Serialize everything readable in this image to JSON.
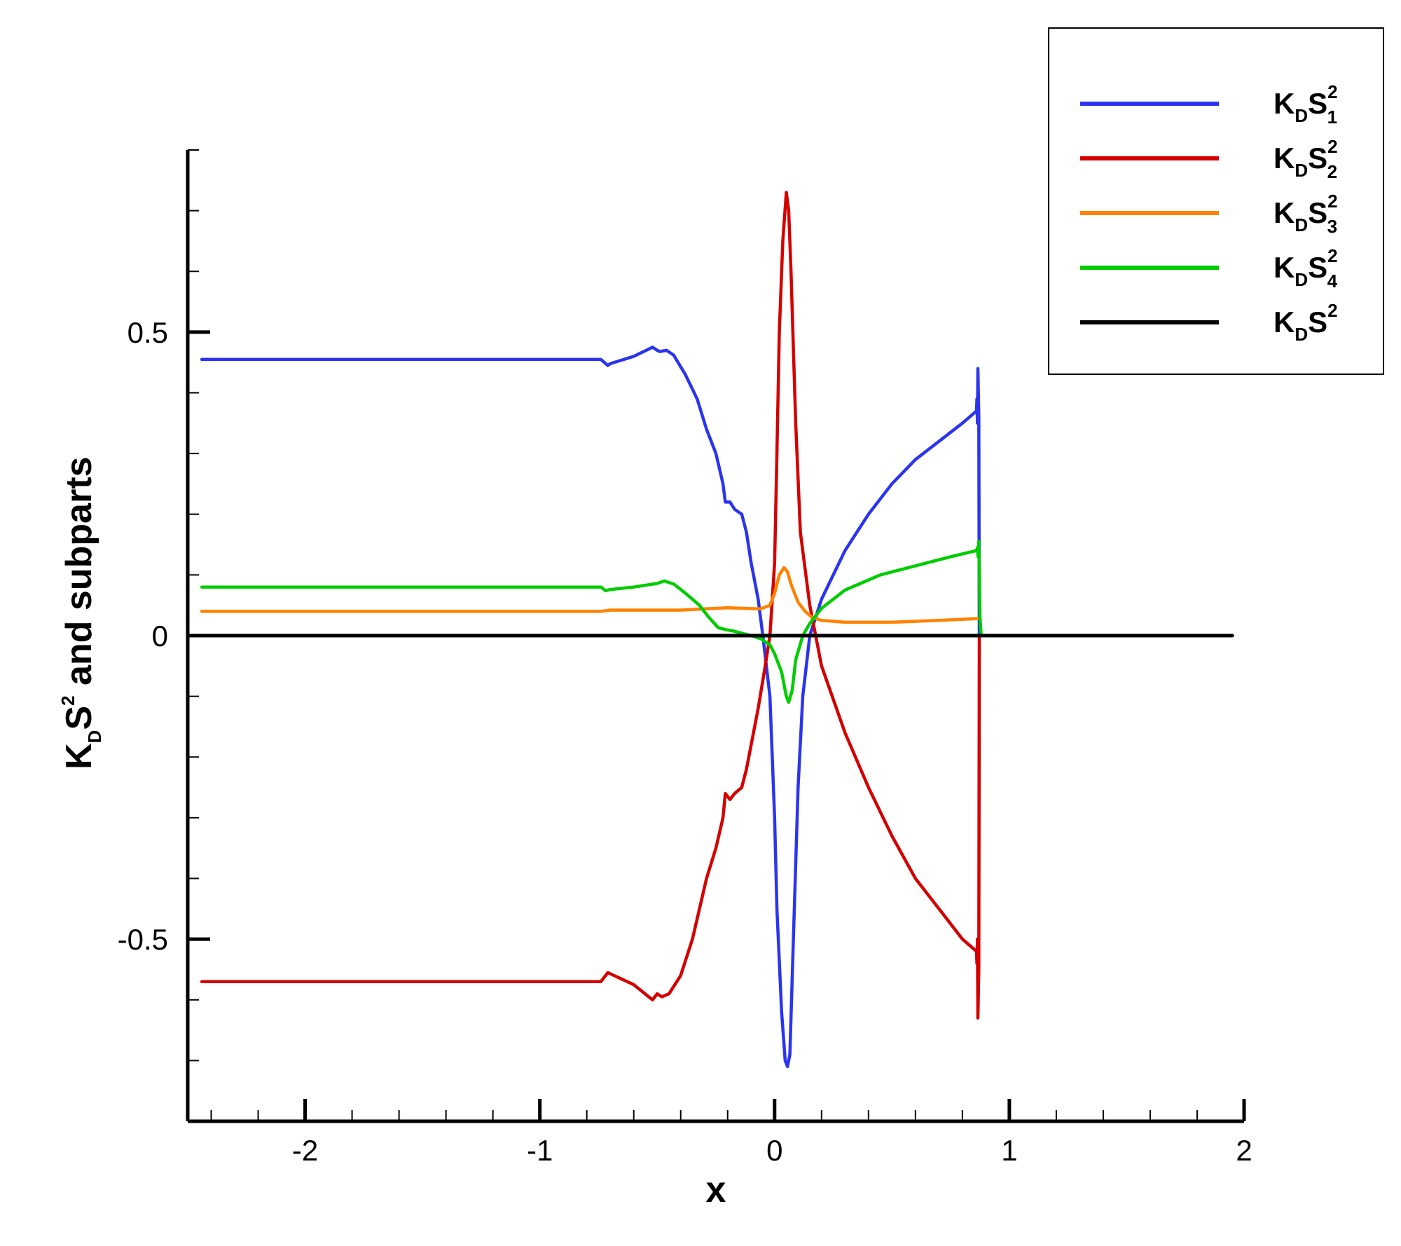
{
  "chart_data": {
    "type": "line",
    "xlabel": "x",
    "ylabel": {
      "main": "K",
      "sub": "D",
      "mid": "S",
      "sup": "2",
      "tail": " and subparts"
    },
    "xlim": [
      -2.5,
      2.0
    ],
    "ylim": [
      -0.8,
      0.8
    ],
    "x_ticks": [
      {
        "value": -2,
        "label": "-2"
      },
      {
        "value": -1,
        "label": "-1"
      },
      {
        "value": 0,
        "label": "0"
      },
      {
        "value": 1,
        "label": "1"
      },
      {
        "value": 2,
        "label": "2"
      }
    ],
    "x_minor_step": 0.2,
    "y_ticks": [
      {
        "value": 0.5,
        "label": "0.5"
      },
      {
        "value": 0,
        "label": "0"
      },
      {
        "value": -0.5,
        "label": "-0.5"
      }
    ],
    "y_minor_step": 0.1,
    "grid": false,
    "legend_position": "top-right",
    "series": [
      {
        "key": "s1",
        "legend": {
          "main": "K",
          "sub": "D",
          "mid": "S",
          "sup": "2",
          "idx": "1"
        },
        "color": "#2b35ee",
        "x": [
          -2.44,
          -0.74,
          -0.71,
          -0.7,
          -0.6,
          -0.52,
          -0.5,
          -0.49,
          -0.46,
          -0.43,
          -0.38,
          -0.33,
          -0.29,
          -0.25,
          -0.22,
          -0.21,
          -0.19,
          -0.17,
          -0.14,
          -0.12,
          -0.1,
          -0.07,
          -0.05,
          -0.02,
          0.0,
          0.01,
          0.03,
          0.045,
          0.055,
          0.065,
          0.08,
          0.1,
          0.12,
          0.15,
          0.2,
          0.3,
          0.4,
          0.5,
          0.6,
          0.7,
          0.8,
          0.86,
          0.862,
          0.864,
          0.866,
          0.87,
          0.872,
          0.875
        ],
        "y": [
          0.455,
          0.455,
          0.445,
          0.448,
          0.46,
          0.475,
          0.47,
          0.468,
          0.47,
          0.462,
          0.43,
          0.39,
          0.34,
          0.3,
          0.25,
          0.22,
          0.22,
          0.208,
          0.2,
          0.17,
          0.12,
          0.06,
          0.0,
          -0.1,
          -0.3,
          -0.45,
          -0.62,
          -0.7,
          -0.71,
          -0.69,
          -0.5,
          -0.25,
          -0.1,
          0.0,
          0.06,
          0.14,
          0.2,
          0.25,
          0.29,
          0.32,
          0.35,
          0.37,
          0.39,
          0.35,
          0.44,
          0.36,
          0.0,
          0.0
        ]
      },
      {
        "key": "s2",
        "legend": {
          "main": "K",
          "sub": "D",
          "mid": "S",
          "sup": "2",
          "idx": "2"
        },
        "color": "#d40000",
        "x": [
          -2.44,
          -0.74,
          -0.71,
          -0.7,
          -0.6,
          -0.52,
          -0.5,
          -0.48,
          -0.45,
          -0.4,
          -0.35,
          -0.29,
          -0.25,
          -0.22,
          -0.21,
          -0.19,
          -0.17,
          -0.14,
          -0.12,
          -0.1,
          -0.07,
          -0.04,
          -0.02,
          0.0,
          0.01,
          0.02,
          0.035,
          0.05,
          0.06,
          0.07,
          0.09,
          0.11,
          0.15,
          0.2,
          0.3,
          0.4,
          0.5,
          0.6,
          0.7,
          0.8,
          0.86,
          0.862,
          0.864,
          0.866,
          0.87,
          0.872,
          0.875
        ],
        "y": [
          -0.57,
          -0.57,
          -0.555,
          -0.557,
          -0.575,
          -0.6,
          -0.59,
          -0.595,
          -0.59,
          -0.56,
          -0.5,
          -0.4,
          -0.35,
          -0.3,
          -0.26,
          -0.27,
          -0.26,
          -0.25,
          -0.22,
          -0.18,
          -0.12,
          -0.05,
          0.0,
          0.12,
          0.3,
          0.5,
          0.65,
          0.73,
          0.7,
          0.6,
          0.35,
          0.17,
          0.05,
          -0.05,
          -0.16,
          -0.25,
          -0.33,
          -0.4,
          -0.45,
          -0.5,
          -0.52,
          -0.54,
          -0.5,
          -0.63,
          -0.55,
          0.0,
          0.0
        ]
      },
      {
        "key": "s3",
        "legend": {
          "main": "K",
          "sub": "D",
          "mid": "S",
          "sup": "2",
          "idx": "3"
        },
        "color": "#ff8200",
        "x": [
          -2.44,
          -0.74,
          -0.7,
          -0.4,
          -0.2,
          -0.06,
          -0.02,
          0.0,
          0.02,
          0.04,
          0.055,
          0.07,
          0.1,
          0.13,
          0.16,
          0.2,
          0.3,
          0.5,
          0.7,
          0.86,
          0.872
        ],
        "y": [
          0.04,
          0.04,
          0.042,
          0.042,
          0.046,
          0.044,
          0.05,
          0.07,
          0.1,
          0.112,
          0.105,
          0.085,
          0.055,
          0.04,
          0.03,
          0.025,
          0.022,
          0.022,
          0.025,
          0.028,
          0.028
        ]
      },
      {
        "key": "s4",
        "legend": {
          "main": "K",
          "sub": "D",
          "mid": "S",
          "sup": "2",
          "idx": "4"
        },
        "color": "#00cc00",
        "x": [
          -2.44,
          -0.74,
          -0.72,
          -0.7,
          -0.6,
          -0.5,
          -0.47,
          -0.43,
          -0.38,
          -0.32,
          -0.28,
          -0.24,
          -0.21,
          -0.18,
          -0.14,
          -0.1,
          -0.06,
          -0.02,
          0.0,
          0.03,
          0.05,
          0.06,
          0.075,
          0.09,
          0.12,
          0.15,
          0.2,
          0.3,
          0.45,
          0.6,
          0.75,
          0.86,
          0.864,
          0.867,
          0.87,
          0.875,
          0.88
        ],
        "y": [
          0.08,
          0.08,
          0.074,
          0.076,
          0.08,
          0.086,
          0.09,
          0.085,
          0.07,
          0.05,
          0.03,
          0.013,
          0.01,
          0.008,
          0.004,
          0.0,
          -0.005,
          -0.015,
          -0.03,
          -0.06,
          -0.1,
          -0.11,
          -0.09,
          -0.04,
          0.0,
          0.02,
          0.045,
          0.075,
          0.1,
          0.115,
          0.13,
          0.14,
          0.145,
          0.13,
          0.155,
          0.03,
          0.0
        ]
      },
      {
        "key": "total",
        "legend": {
          "main": "K",
          "sub": "D",
          "mid": "S",
          "sup": "2",
          "idx": ""
        },
        "color": "#000000",
        "x": [
          -2.44,
          1.95
        ],
        "y": [
          0.0,
          0.0
        ]
      }
    ]
  }
}
